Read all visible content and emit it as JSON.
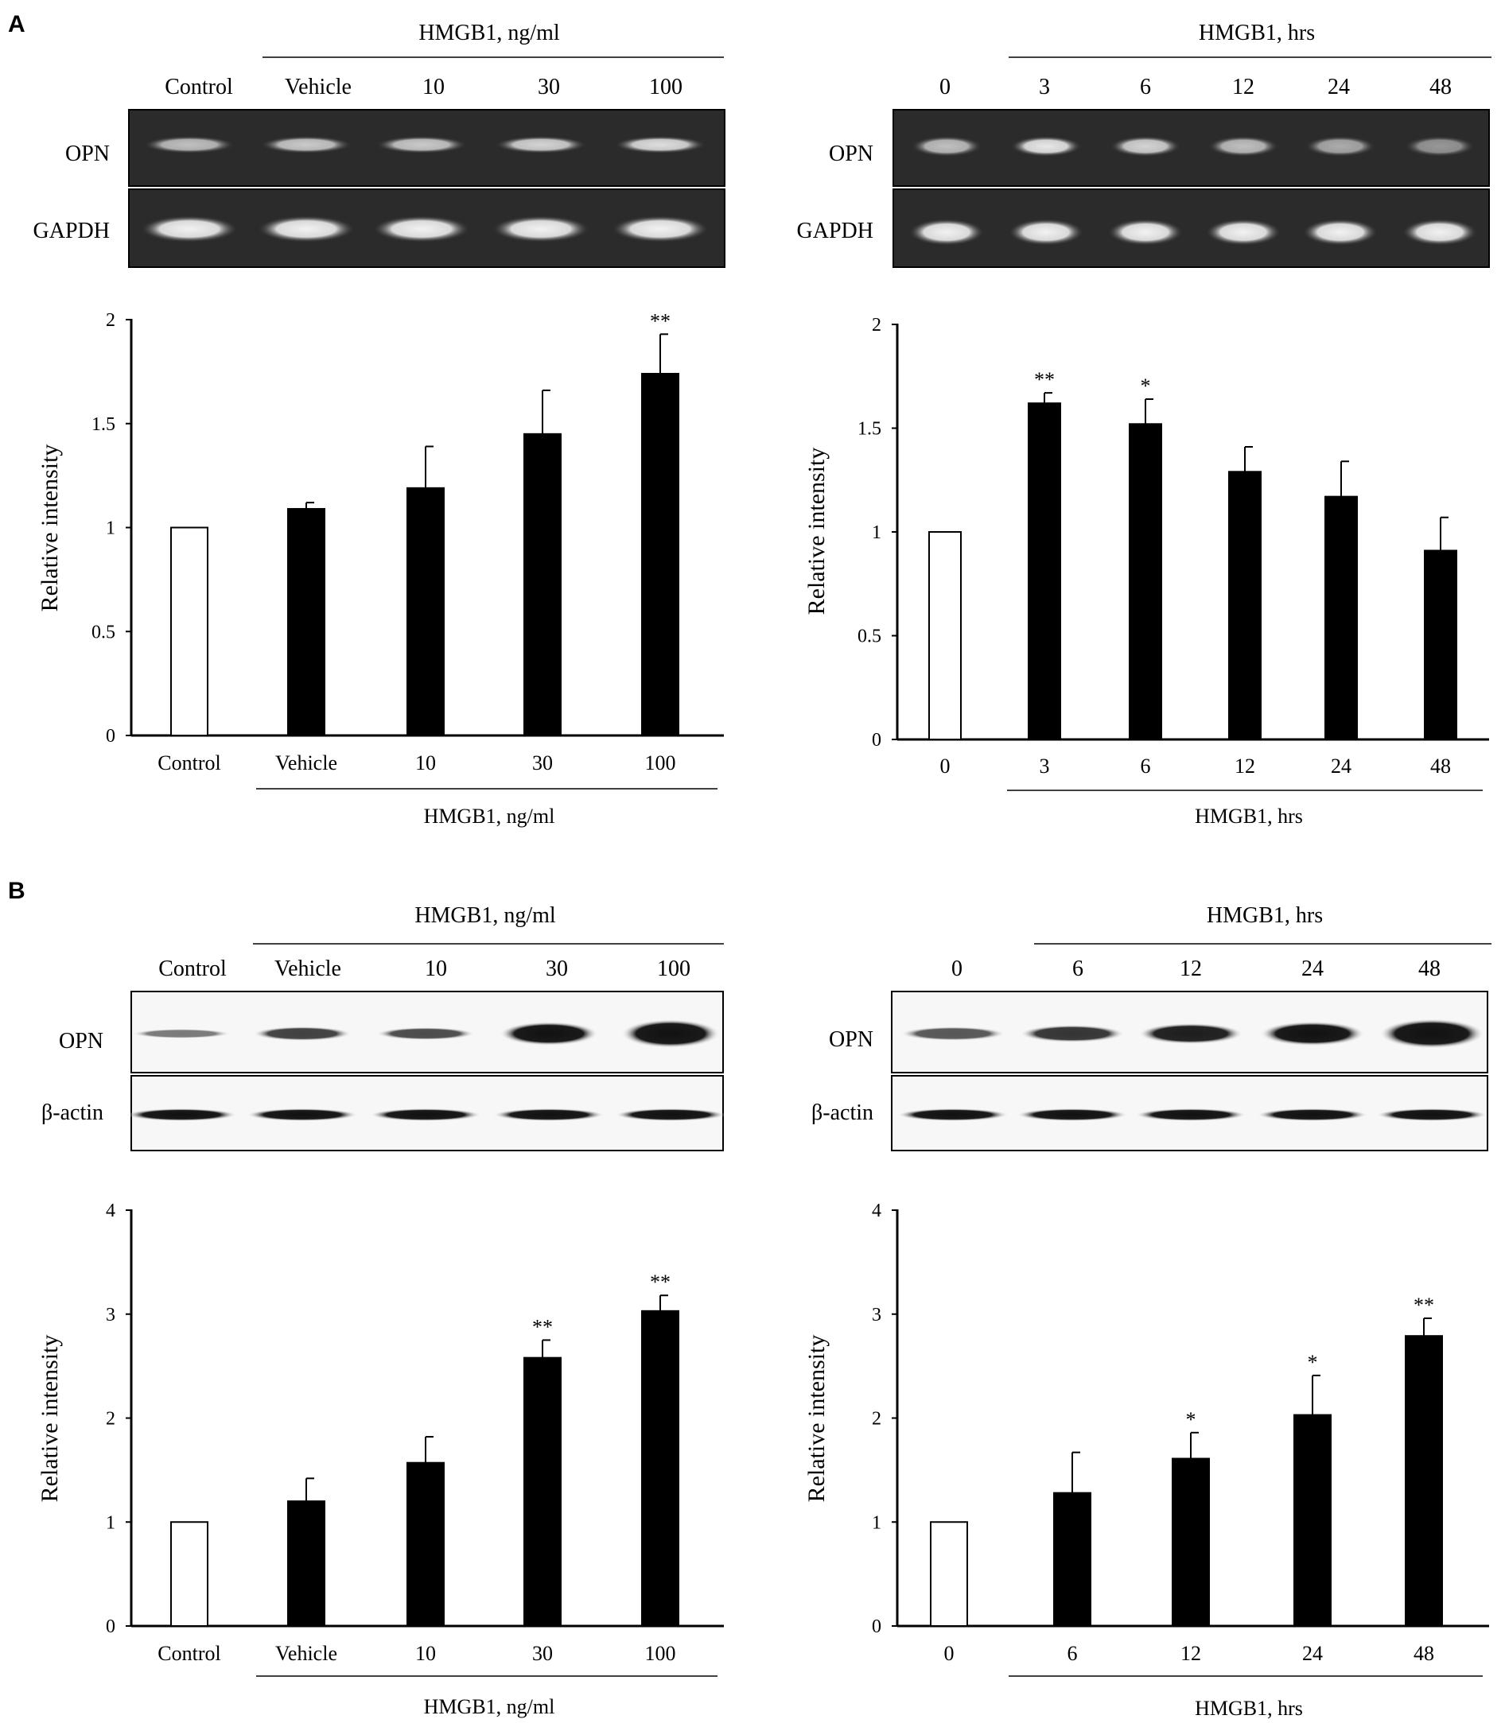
{
  "figure": {
    "panel_labels": [
      "A",
      "B"
    ],
    "dose_header": "HMGB1, ng/ml",
    "time_header": "HMGB1, hrs",
    "dose_lanes": [
      "Control",
      "Vehicle",
      "10",
      "30",
      "100"
    ],
    "time_lanes_A": [
      "0",
      "3",
      "6",
      "12",
      "24",
      "48"
    ],
    "time_lanes_B": [
      "0",
      "6",
      "12",
      "24",
      "48"
    ],
    "blot_A_rows": [
      "OPN",
      "GAPDH"
    ],
    "blot_B_rows": [
      "OPN",
      "β-actin"
    ]
  },
  "chart_data": [
    {
      "id": "A-dose",
      "type": "bar",
      "categories": [
        "Control",
        "Vehicle",
        "10",
        "30",
        "100"
      ],
      "values": [
        1.0,
        1.09,
        1.19,
        1.45,
        1.74
      ],
      "errors": [
        0,
        0.03,
        0.2,
        0.21,
        0.19
      ],
      "significance": [
        "",
        "",
        "",
        "",
        "**"
      ],
      "open_bars": [
        true,
        false,
        false,
        false,
        false
      ],
      "ylabel": "Relative intensity",
      "xlabel": "HMGB1, ng/ml",
      "ylim": [
        0,
        2
      ],
      "yticks": [
        "0",
        "0.5",
        "1",
        "1.5",
        "2"
      ]
    },
    {
      "id": "A-time",
      "type": "bar",
      "categories": [
        "0",
        "3",
        "6",
        "12",
        "24",
        "48"
      ],
      "values": [
        1.0,
        1.62,
        1.52,
        1.29,
        1.17,
        0.91
      ],
      "errors": [
        0,
        0.05,
        0.12,
        0.12,
        0.17,
        0.16
      ],
      "significance": [
        "",
        "**",
        "*",
        "",
        "",
        ""
      ],
      "open_bars": [
        true,
        false,
        false,
        false,
        false,
        false
      ],
      "ylabel": "Relative intensity",
      "xlabel": "HMGB1, hrs",
      "ylim": [
        0,
        2
      ],
      "yticks": [
        "0",
        "0.5",
        "1",
        "1.5",
        "2"
      ]
    },
    {
      "id": "B-dose",
      "type": "bar",
      "categories": [
        "Control",
        "Vehicle",
        "10",
        "30",
        "100"
      ],
      "values": [
        1.0,
        1.2,
        1.57,
        2.58,
        3.03
      ],
      "errors": [
        0,
        0.22,
        0.25,
        0.17,
        0.15
      ],
      "significance": [
        "",
        "",
        "",
        "**",
        "**"
      ],
      "open_bars": [
        true,
        false,
        false,
        false,
        false
      ],
      "ylabel": "Relative intensity",
      "xlabel": "HMGB1, ng/ml",
      "ylim": [
        0,
        4
      ],
      "yticks": [
        "0",
        "1",
        "2",
        "3",
        "4"
      ]
    },
    {
      "id": "B-time",
      "type": "bar",
      "categories": [
        "0",
        "6",
        "12",
        "24",
        "48"
      ],
      "values": [
        1.0,
        1.28,
        1.61,
        2.03,
        2.79
      ],
      "errors": [
        0,
        0.39,
        0.25,
        0.38,
        0.17
      ],
      "significance": [
        "",
        "",
        "*",
        "*",
        "**"
      ],
      "open_bars": [
        true,
        false,
        false,
        false,
        false
      ],
      "ylabel": "Relative intensity",
      "xlabel": "HMGB1, hrs",
      "ylim": [
        0,
        4
      ],
      "yticks": [
        "0",
        "1",
        "2",
        "3",
        "4"
      ]
    }
  ]
}
